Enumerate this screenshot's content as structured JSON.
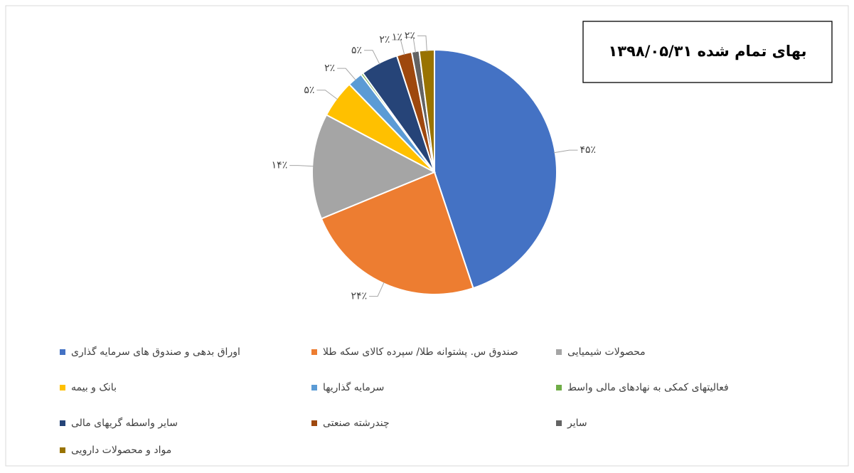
{
  "chart_data": {
    "type": "pie",
    "title": "بهای تمام شده ۱۳۹۸/۰۵/۳۱",
    "categories": [
      "اوراق بدهی و صندوق های سرمایه گذاری",
      "صندوق س. پشتوانه طلا/ سپرده کالای سکه طلا",
      "محصولات شیمیایی",
      "بانک و بیمه",
      "سرمایه گذاریها",
      "فعالیتهای کمکی به نهادهای مالی واسط",
      "سایر واسطه گریهای مالی",
      "چندرشته صنعتی",
      "سایر",
      "مواد و محصولات دارویی"
    ],
    "values": [
      45,
      24,
      14,
      5,
      2,
      0.3,
      5,
      2,
      1,
      2
    ],
    "value_labels": [
      "۴۵٪",
      "۲۴٪",
      "۱۴٪",
      "۵٪",
      "۲٪",
      null,
      "۵٪",
      "۲٪",
      "۱٪",
      "۲٪"
    ],
    "colors": [
      "#4472c4",
      "#ed7d31",
      "#a5a5a5",
      "#ffc000",
      "#5b9bd5",
      "#70ad47",
      "#264478",
      "#9e480e",
      "#636363",
      "#997300"
    ],
    "legend": "bottom"
  }
}
